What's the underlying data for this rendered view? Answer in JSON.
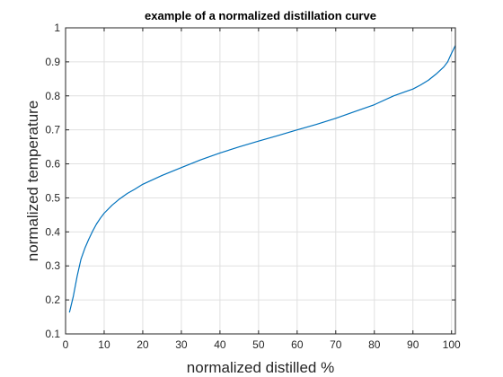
{
  "chart_data": {
    "type": "line",
    "title": "example of a normalized distillation curve",
    "xlabel": "normalized distilled %",
    "ylabel": "normalized temperature",
    "xlim": [
      0,
      101
    ],
    "ylim": [
      0.1,
      1
    ],
    "xticks": [
      0,
      10,
      20,
      30,
      40,
      50,
      60,
      70,
      80,
      90,
      100
    ],
    "yticks": [
      0.1,
      0.2,
      0.3,
      0.4,
      0.5,
      0.6,
      0.7,
      0.8,
      0.9,
      1
    ],
    "ytick_labels": [
      "0.1",
      "0.2",
      "0.3",
      "0.4",
      "0.5",
      "0.6",
      "0.7",
      "0.8",
      "0.9",
      "1"
    ],
    "grid": true,
    "color": "#0072bd",
    "series": [
      {
        "x": [
          1,
          2,
          3,
          4,
          5,
          6,
          7,
          8,
          9,
          10,
          12,
          14,
          16,
          18,
          20,
          25,
          30,
          35,
          40,
          45,
          50,
          55,
          60,
          65,
          70,
          75,
          80,
          85,
          88,
          90,
          92,
          94,
          96,
          98,
          99,
          100,
          101
        ],
        "y": [
          0.163,
          0.21,
          0.27,
          0.32,
          0.352,
          0.378,
          0.402,
          0.423,
          0.44,
          0.455,
          0.478,
          0.497,
          0.513,
          0.526,
          0.54,
          0.566,
          0.589,
          0.612,
          0.632,
          0.65,
          0.667,
          0.683,
          0.7,
          0.716,
          0.734,
          0.754,
          0.774,
          0.8,
          0.812,
          0.82,
          0.832,
          0.846,
          0.864,
          0.885,
          0.9,
          0.925,
          0.948
        ]
      }
    ]
  }
}
